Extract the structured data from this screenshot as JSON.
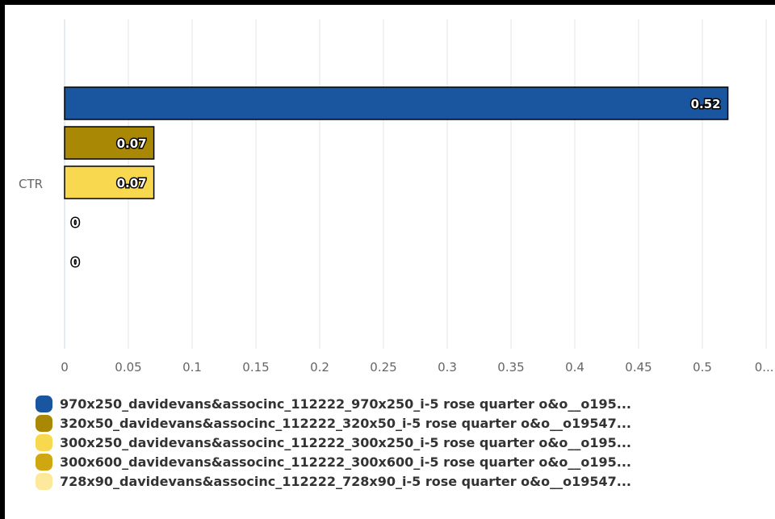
{
  "chart_data": {
    "type": "bar",
    "orientation": "horizontal",
    "categories": [
      "CTR"
    ],
    "series": [
      {
        "name": "970x250_davidevans&associnc_112222_970x250_i-5 rose quarter o&o__o195...",
        "values": [
          0.52
        ],
        "color": "#1a56a0",
        "label": "0.52"
      },
      {
        "name": "320x50_davidevans&associnc_112222_320x50_i-5 rose quarter o&o__o19547...",
        "values": [
          0.07
        ],
        "color": "#a88805",
        "label": "0.07"
      },
      {
        "name": "300x250_davidevans&associnc_112222_300x250_i-5 rose quarter o&o__o195...",
        "values": [
          0.07
        ],
        "color": "#f7d84e",
        "label": "0.07"
      },
      {
        "name": "300x600_davidevans&associnc_112222_300x600_i-5 rose quarter o&o__o195...",
        "values": [
          0
        ],
        "color": "#cfa710",
        "label": "0"
      },
      {
        "name": "728x90_davidevans&associnc_112222_728x90_i-5 rose quarter o&o__o19547...",
        "values": [
          0
        ],
        "color": "#fce99b",
        "label": "0"
      }
    ],
    "x_ticks": [
      "0",
      "0.05",
      "0.1",
      "0.15",
      "0.2",
      "0.25",
      "0.3",
      "0.35",
      "0.4",
      "0.45",
      "0.5",
      "0...."
    ],
    "xlim": [
      0,
      0.55
    ],
    "grid": true,
    "legend_position": "bottom-left",
    "title": "",
    "xlabel": "",
    "ylabel": ""
  }
}
